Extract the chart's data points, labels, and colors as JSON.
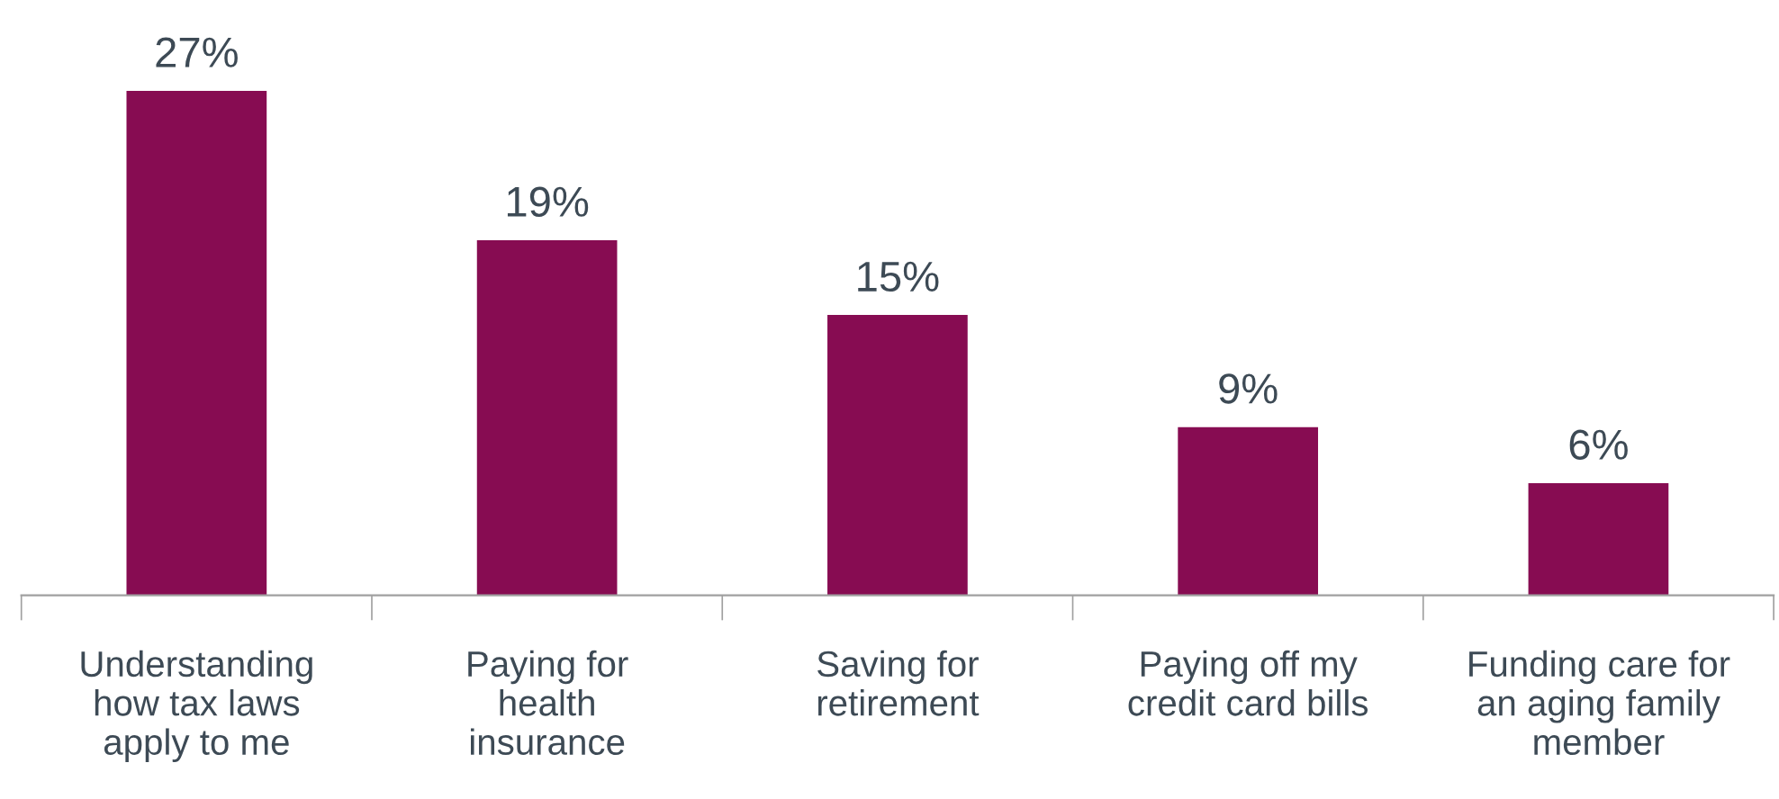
{
  "chart_data": {
    "type": "bar",
    "categories": [
      "Understanding\nhow tax laws\napply to me",
      "Paying for\nhealth\ninsurance",
      "Saving for\nretirement",
      "Paying off my\ncredit card bills",
      "Funding care for\nan aging family\nmember"
    ],
    "values": [
      27,
      19,
      15,
      9,
      6
    ],
    "color": "#870c52",
    "data_labels": true,
    "value_labels": [
      "27%",
      "19%",
      "15%",
      "9%",
      "6%"
    ]
  }
}
